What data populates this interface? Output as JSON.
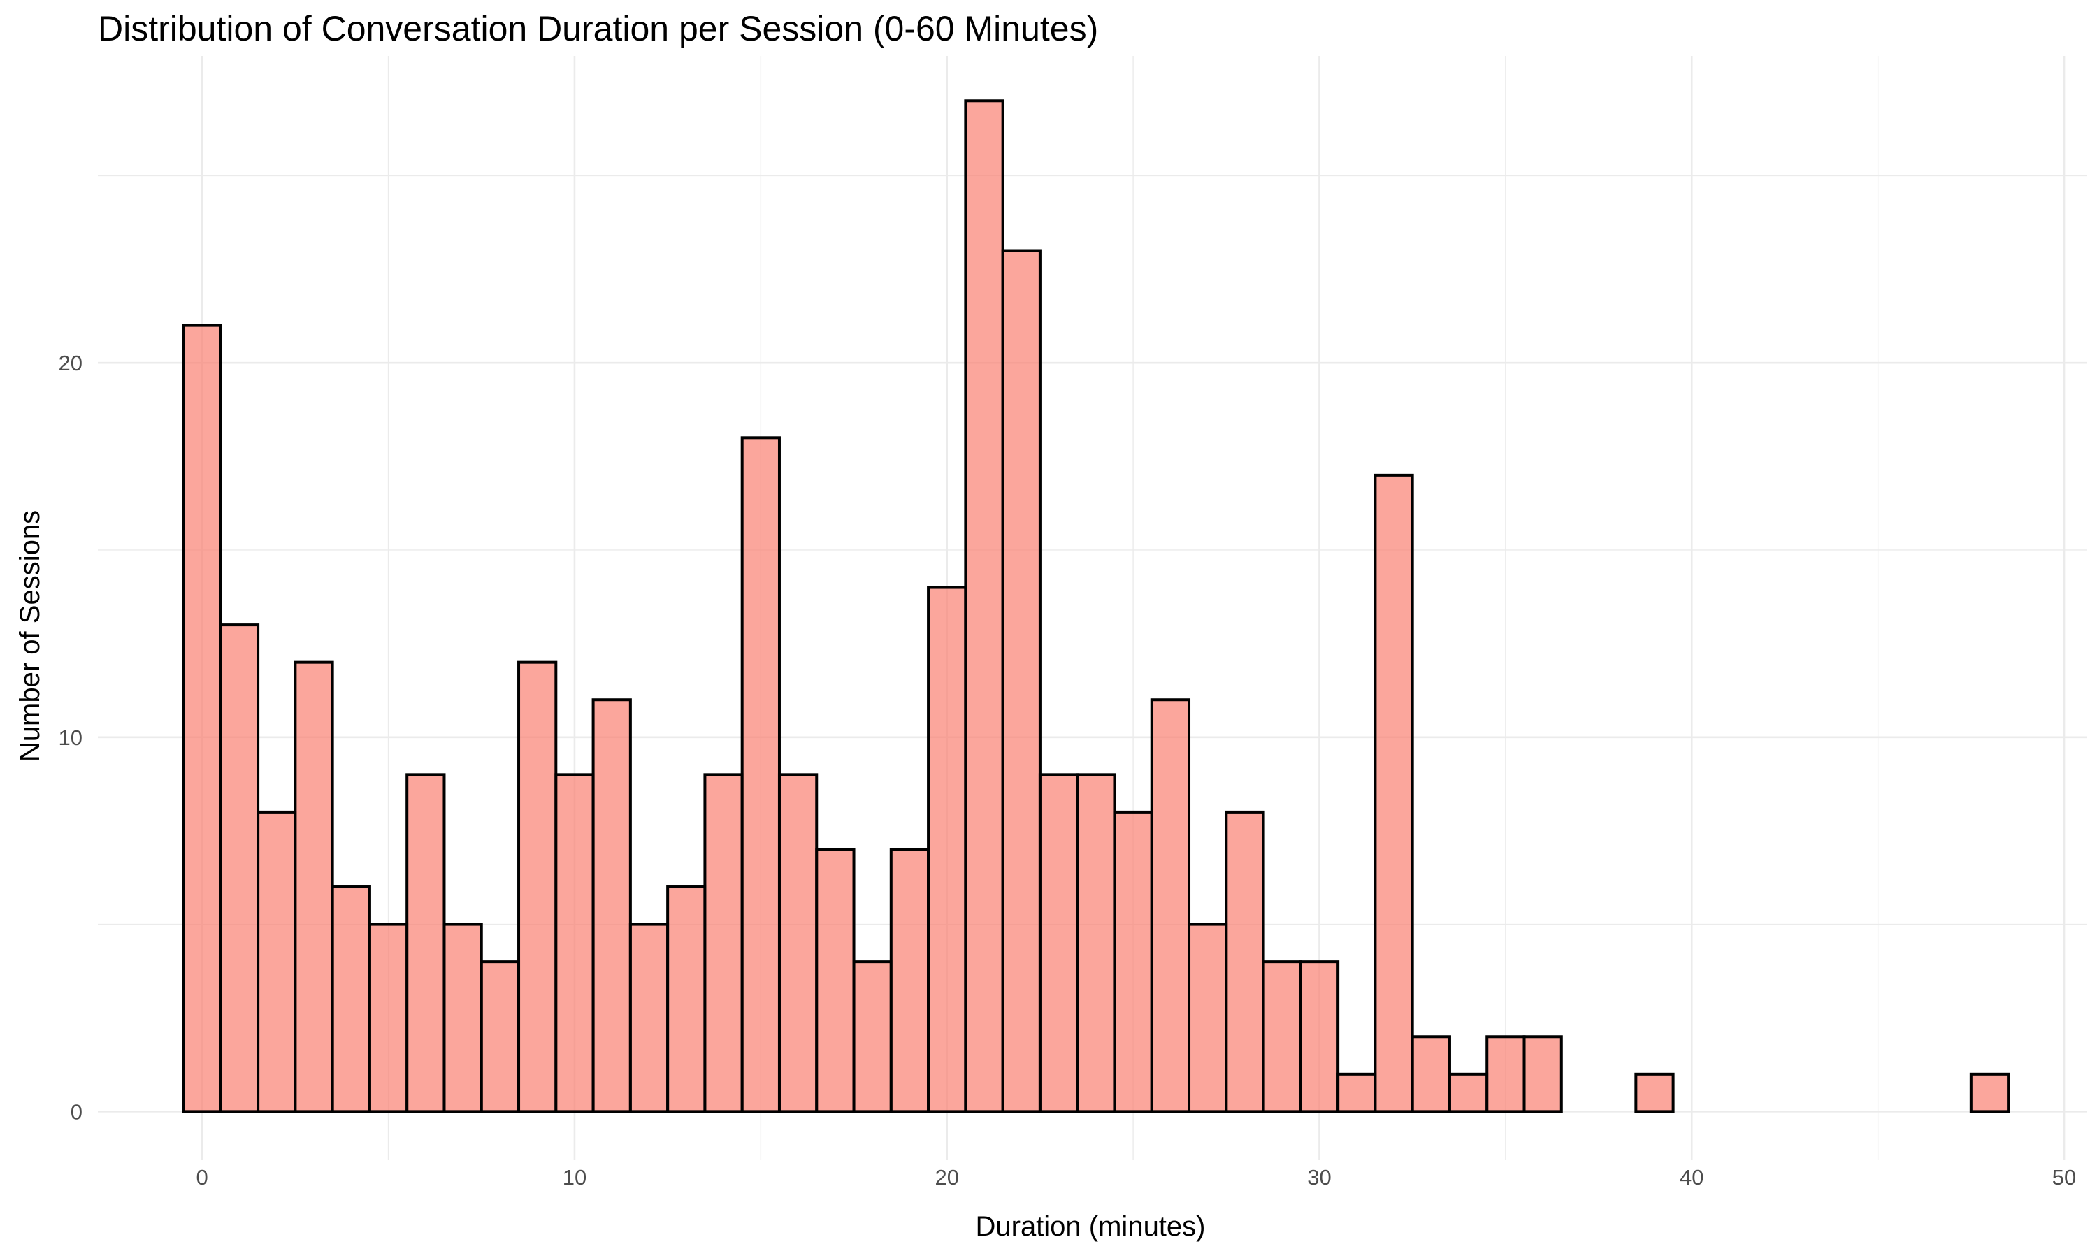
{
  "chart_data": {
    "type": "bar",
    "title": "Distribution of Conversation Duration per Session (0-60 Minutes)",
    "xlabel": "Duration (minutes)",
    "ylabel": "Number of Sessions",
    "xlim": [
      -2.8,
      50.6
    ],
    "ylim": [
      -1.3,
      28.2
    ],
    "x_ticks": [
      0,
      10,
      20,
      30,
      40,
      50
    ],
    "y_ticks": [
      0,
      10,
      20
    ],
    "x_tick_labels": [
      "0",
      "10",
      "20",
      "30",
      "40",
      "50"
    ],
    "y_tick_labels": [
      "0",
      "10",
      "20"
    ],
    "bin_width": 1,
    "bin_start": -0.5,
    "values": [
      21,
      13,
      8,
      12,
      6,
      5,
      9,
      5,
      4,
      12,
      9,
      11,
      5,
      6,
      9,
      18,
      9,
      7,
      4,
      7,
      14,
      27,
      23,
      9,
      9,
      8,
      11,
      5,
      8,
      4,
      4,
      1,
      17,
      2,
      1,
      2,
      2,
      0,
      0,
      1,
      0,
      0,
      0,
      0,
      0,
      0,
      0,
      0,
      1
    ],
    "grid": true,
    "legend": "none",
    "colors": {
      "bar_fill": "#fa8072",
      "bar_outline": "#000000",
      "grid": "#ebebeb"
    }
  }
}
